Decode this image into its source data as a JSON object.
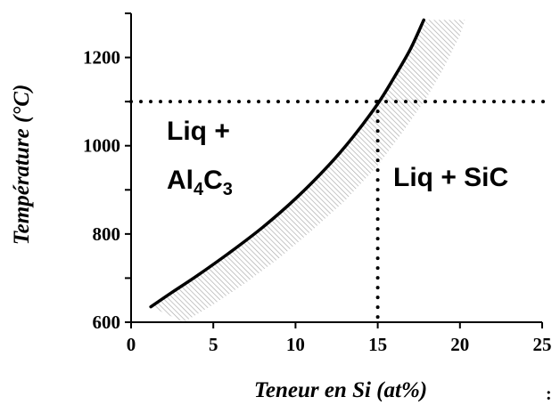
{
  "chart_data": {
    "type": "line",
    "xlabel": "Teneur en Si (at%)",
    "ylabel": "Température (°C)",
    "xlim": [
      0,
      25
    ],
    "ylim": [
      600,
      1300
    ],
    "x_ticks": [
      "0",
      "5",
      "10",
      "15",
      "20",
      "25"
    ],
    "y_ticks": [
      "600",
      "800",
      "1000",
      "1200"
    ],
    "series": [
      {
        "style": "solid",
        "color": "#000000",
        "x": [
          1.2,
          2.5,
          4,
          6,
          8,
          10,
          12,
          13.5,
          15,
          16,
          17,
          17.8
        ],
        "y": [
          635,
          668,
          705,
          758,
          815,
          880,
          955,
          1020,
          1095,
          1155,
          1220,
          1285
        ]
      }
    ],
    "uncertainty_band": {
      "fill": "hatched",
      "color": "#b0b0b0",
      "upper": {
        "x": [
          1.2,
          2.5,
          4,
          6,
          8,
          10,
          12,
          13.5,
          15,
          16,
          17,
          17.8
        ],
        "y": [
          635,
          668,
          705,
          758,
          815,
          880,
          955,
          1020,
          1095,
          1155,
          1220,
          1285
        ]
      },
      "lower": {
        "x": [
          3.2,
          5,
          7,
          9,
          11,
          13,
          15,
          16.5,
          18,
          19,
          20,
          20.3
        ],
        "y": [
          600,
          640,
          690,
          745,
          808,
          875,
          955,
          1030,
          1110,
          1175,
          1250,
          1285
        ]
      }
    },
    "reference_lines": [
      {
        "orientation": "horizontal",
        "y": 1100,
        "style": "dotted"
      },
      {
        "orientation": "vertical",
        "x": 15,
        "y_from": 600,
        "y_to": 1100,
        "style": "dotted"
      }
    ],
    "annotations": [
      {
        "text": "Liq +",
        "region": "upper-left"
      },
      {
        "text_main": [
          "Al",
          "C"
        ],
        "text_sub": [
          "4",
          "3"
        ],
        "region": "left"
      },
      {
        "text": "Liq + SiC",
        "region": "right"
      }
    ],
    "stray_mark": ":"
  }
}
